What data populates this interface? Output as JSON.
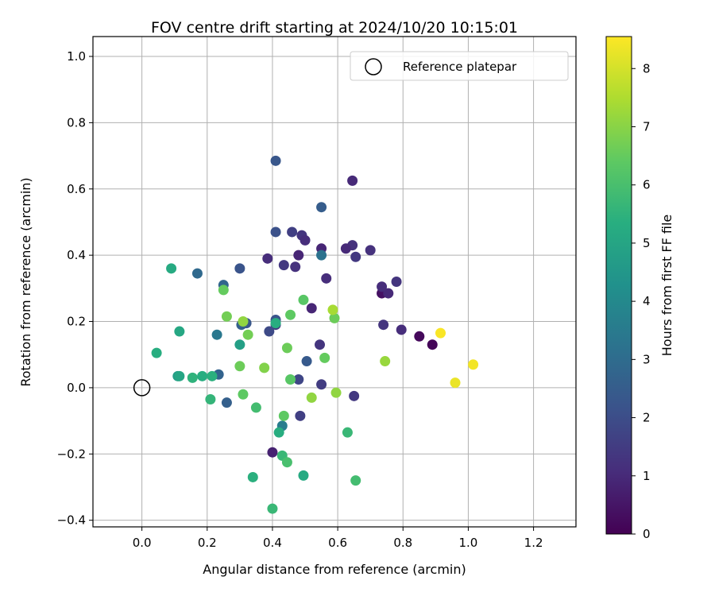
{
  "chart_data": {
    "type": "scatter",
    "title": "FOV centre drift starting at 2024/10/20 10:15:01",
    "xlabel": "Angular distance from reference (arcmin)",
    "ylabel": "Rotation from reference (arcmin)",
    "xlim": [
      -0.15,
      1.33
    ],
    "ylim": [
      -0.42,
      1.06
    ],
    "x_ticks": [
      0.0,
      0.2,
      0.4,
      0.6,
      0.8,
      1.0,
      1.2
    ],
    "x_tick_labels": [
      "0.0",
      "0.2",
      "0.4",
      "0.6",
      "0.8",
      "1.0",
      "1.2"
    ],
    "y_ticks": [
      -0.4,
      -0.2,
      0.0,
      0.2,
      0.4,
      0.6,
      0.8,
      1.0
    ],
    "y_tick_labels": [
      "−0.4",
      "−0.2",
      "0.0",
      "0.2",
      "0.4",
      "0.6",
      "0.8",
      "1.0"
    ],
    "grid": true,
    "legend": {
      "position": "top-right",
      "entries": [
        "Reference platepar"
      ]
    },
    "reference_point": {
      "x": 0.0,
      "y": 0.0,
      "label": "Reference platepar"
    },
    "colorbar": {
      "label": "Hours from first FF file",
      "colormap": "viridis",
      "range": [
        0,
        8.55
      ],
      "ticks": [
        0,
        1,
        2,
        3,
        4,
        5,
        6,
        7,
        8
      ],
      "tick_labels": [
        "0",
        "1",
        "2",
        "3",
        "4",
        "5",
        "6",
        "7",
        "8"
      ]
    },
    "points": [
      {
        "x": 0.85,
        "y": 0.155,
        "c": 0.2
      },
      {
        "x": 0.89,
        "y": 0.13,
        "c": 0.1
      },
      {
        "x": 0.735,
        "y": 0.285,
        "c": 0.4
      },
      {
        "x": 0.755,
        "y": 0.285,
        "c": 1.0
      },
      {
        "x": 0.735,
        "y": 0.305,
        "c": 1.1
      },
      {
        "x": 0.78,
        "y": 0.32,
        "c": 1.3
      },
      {
        "x": 0.795,
        "y": 0.175,
        "c": 1.1
      },
      {
        "x": 0.74,
        "y": 0.19,
        "c": 1.3
      },
      {
        "x": 0.7,
        "y": 0.415,
        "c": 1.2
      },
      {
        "x": 0.645,
        "y": 0.625,
        "c": 1.0
      },
      {
        "x": 0.645,
        "y": 0.43,
        "c": 1.2
      },
      {
        "x": 0.625,
        "y": 0.42,
        "c": 1.0
      },
      {
        "x": 0.655,
        "y": 0.395,
        "c": 1.4
      },
      {
        "x": 0.565,
        "y": 0.33,
        "c": 1.1
      },
      {
        "x": 0.55,
        "y": 0.42,
        "c": 0.9
      },
      {
        "x": 0.52,
        "y": 0.24,
        "c": 0.9
      },
      {
        "x": 0.545,
        "y": 0.13,
        "c": 1.3
      },
      {
        "x": 0.55,
        "y": 0.01,
        "c": 1.5
      },
      {
        "x": 0.65,
        "y": -0.025,
        "c": 1.4
      },
      {
        "x": 0.485,
        "y": -0.085,
        "c": 1.6
      },
      {
        "x": 0.47,
        "y": 0.365,
        "c": 1.2
      },
      {
        "x": 0.48,
        "y": 0.4,
        "c": 0.9
      },
      {
        "x": 0.49,
        "y": 0.46,
        "c": 1.3
      },
      {
        "x": 0.5,
        "y": 0.445,
        "c": 1.1
      },
      {
        "x": 0.46,
        "y": 0.47,
        "c": 1.6
      },
      {
        "x": 0.435,
        "y": 0.37,
        "c": 1.4
      },
      {
        "x": 0.385,
        "y": 0.39,
        "c": 1.1
      },
      {
        "x": 0.41,
        "y": 0.19,
        "c": 1.5
      },
      {
        "x": 0.39,
        "y": 0.17,
        "c": 1.9
      },
      {
        "x": 0.41,
        "y": 0.47,
        "c": 2.1
      },
      {
        "x": 0.41,
        "y": 0.685,
        "c": 2.3
      },
      {
        "x": 0.55,
        "y": 0.545,
        "c": 2.5
      },
      {
        "x": 0.55,
        "y": 0.4,
        "c": 3.2
      },
      {
        "x": 0.505,
        "y": 0.08,
        "c": 2.4
      },
      {
        "x": 0.48,
        "y": 0.025,
        "c": 1.8
      },
      {
        "x": 0.41,
        "y": 0.205,
        "c": 2.2
      },
      {
        "x": 0.4,
        "y": -0.195,
        "c": 0.8
      },
      {
        "x": 0.3,
        "y": 0.36,
        "c": 2.2
      },
      {
        "x": 0.25,
        "y": 0.31,
        "c": 2.8
      },
      {
        "x": 0.17,
        "y": 0.345,
        "c": 2.9
      },
      {
        "x": 0.32,
        "y": 0.195,
        "c": 2.3
      },
      {
        "x": 0.305,
        "y": 0.19,
        "c": 2.6
      },
      {
        "x": 0.23,
        "y": 0.16,
        "c": 3.4
      },
      {
        "x": 0.235,
        "y": 0.04,
        "c": 2.7
      },
      {
        "x": 0.26,
        "y": -0.045,
        "c": 2.6
      },
      {
        "x": 0.43,
        "y": -0.115,
        "c": 3.6
      },
      {
        "x": 0.41,
        "y": 0.195,
        "c": 5.3
      },
      {
        "x": 0.3,
        "y": 0.13,
        "c": 4.8
      },
      {
        "x": 0.09,
        "y": 0.36,
        "c": 5.2
      },
      {
        "x": 0.045,
        "y": 0.105,
        "c": 5.3
      },
      {
        "x": 0.115,
        "y": 0.17,
        "c": 5.1
      },
      {
        "x": 0.11,
        "y": 0.035,
        "c": 4.7
      },
      {
        "x": 0.115,
        "y": 0.035,
        "c": 5.0
      },
      {
        "x": 0.155,
        "y": 0.03,
        "c": 5.5
      },
      {
        "x": 0.185,
        "y": 0.035,
        "c": 5.3
      },
      {
        "x": 0.215,
        "y": 0.035,
        "c": 5.4
      },
      {
        "x": 0.21,
        "y": -0.035,
        "c": 5.6
      },
      {
        "x": 0.35,
        "y": -0.06,
        "c": 5.9
      },
      {
        "x": 0.42,
        "y": -0.135,
        "c": 5.3
      },
      {
        "x": 0.43,
        "y": -0.205,
        "c": 5.7
      },
      {
        "x": 0.445,
        "y": -0.225,
        "c": 6.0
      },
      {
        "x": 0.34,
        "y": -0.27,
        "c": 5.4
      },
      {
        "x": 0.495,
        "y": -0.265,
        "c": 5.2
      },
      {
        "x": 0.4,
        "y": -0.365,
        "c": 5.7
      },
      {
        "x": 0.655,
        "y": -0.28,
        "c": 5.9
      },
      {
        "x": 0.63,
        "y": -0.135,
        "c": 5.7
      },
      {
        "x": 0.435,
        "y": -0.085,
        "c": 6.4
      },
      {
        "x": 0.31,
        "y": -0.02,
        "c": 6.4
      },
      {
        "x": 0.455,
        "y": 0.025,
        "c": 6.3
      },
      {
        "x": 0.3,
        "y": 0.065,
        "c": 6.6
      },
      {
        "x": 0.375,
        "y": 0.06,
        "c": 6.9
      },
      {
        "x": 0.52,
        "y": -0.03,
        "c": 7.1
      },
      {
        "x": 0.595,
        "y": -0.015,
        "c": 7.1
      },
      {
        "x": 0.56,
        "y": 0.09,
        "c": 6.5
      },
      {
        "x": 0.445,
        "y": 0.12,
        "c": 6.6
      },
      {
        "x": 0.325,
        "y": 0.16,
        "c": 6.7
      },
      {
        "x": 0.455,
        "y": 0.22,
        "c": 6.4
      },
      {
        "x": 0.26,
        "y": 0.215,
        "c": 6.7
      },
      {
        "x": 0.31,
        "y": 0.2,
        "c": 7.1
      },
      {
        "x": 0.25,
        "y": 0.295,
        "c": 6.5
      },
      {
        "x": 0.495,
        "y": 0.265,
        "c": 6.3
      },
      {
        "x": 0.59,
        "y": 0.21,
        "c": 6.6
      },
      {
        "x": 0.585,
        "y": 0.235,
        "c": 7.4
      },
      {
        "x": 0.745,
        "y": 0.08,
        "c": 7.2
      },
      {
        "x": 0.915,
        "y": 0.165,
        "c": 8.5
      },
      {
        "x": 1.015,
        "y": 0.07,
        "c": 8.4
      },
      {
        "x": 0.96,
        "y": 0.015,
        "c": 8.3
      }
    ]
  }
}
